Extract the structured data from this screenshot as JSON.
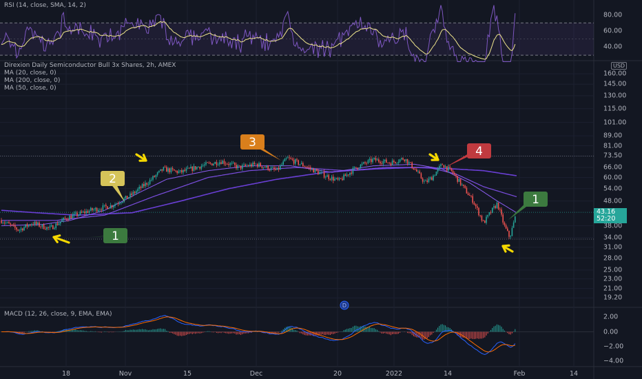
{
  "rsi_legend": "RSI (14, close, SMA, 14, 2)",
  "main_legend": {
    "title": "Direxion Daily Semiconductor Bull 3x Shares, 2h, AMEX",
    "ma20": "MA (20, close, 0)",
    "ma200": "MA (200, close, 0)",
    "ma50": "MA (50, close, 0)"
  },
  "macd_legend": "MACD (12, 26, close, 9, EMA, EMA)",
  "currency": "USD",
  "price_badge": {
    "price": "43.16",
    "countdown": "52:20"
  },
  "event_marker": "D",
  "colors": {
    "background": "#131722",
    "up": "#26a69a",
    "down": "#ef5350",
    "rsi_line": "#7e57c2",
    "rsi_ma": "#f0e68c",
    "ma_line": "#6a3fd6",
    "macd_line": "#2962ff",
    "signal_line": "#ff6d00"
  },
  "annotations": [
    {
      "text": "1",
      "color": "#3c7a3f"
    },
    {
      "text": "2",
      "color": "#d6c45a"
    },
    {
      "text": "3",
      "color": "#d97f1c"
    },
    {
      "text": "4",
      "color": "#c03a3f"
    },
    {
      "text": "1",
      "color": "#3c7a3f"
    }
  ],
  "chart_data": [
    {
      "type": "line",
      "name": "RSI",
      "y_ticks": [
        "80.00",
        "60.00",
        "40.00"
      ],
      "ylim": [
        25,
        95
      ],
      "bands": [
        30,
        70
      ]
    },
    {
      "type": "candlestick",
      "name": "Price",
      "y_ticks": [
        "160.00",
        "145.00",
        "130.00",
        "115.00",
        "101.00",
        "89.00",
        "81.00",
        "73.50",
        "66.00",
        "60.00",
        "54.00",
        "48.00",
        "43.16",
        "38.00",
        "34.00",
        "31.00",
        "28.00",
        "25.00",
        "23.00",
        "21.00",
        "19.20"
      ],
      "scale": "log",
      "ylim": [
        17.8,
        172
      ],
      "x_ticks": [
        "18",
        "Nov",
        "15",
        "Dec",
        "20",
        "2022",
        "14",
        "Feb",
        "14"
      ],
      "last_price": 43.16,
      "anchors": [
        {
          "t": 0,
          "p": 40
        },
        {
          "t": 25,
          "p": 36.5
        },
        {
          "t": 45,
          "p": 39
        },
        {
          "t": 70,
          "p": 37
        },
        {
          "t": 95,
          "p": 41
        },
        {
          "t": 130,
          "p": 44
        },
        {
          "t": 160,
          "p": 46
        },
        {
          "t": 185,
          "p": 50
        },
        {
          "t": 215,
          "p": 58
        },
        {
          "t": 235,
          "p": 65
        },
        {
          "t": 260,
          "p": 63
        },
        {
          "t": 290,
          "p": 67
        },
        {
          "t": 320,
          "p": 70
        },
        {
          "t": 345,
          "p": 66
        },
        {
          "t": 370,
          "p": 68
        },
        {
          "t": 400,
          "p": 64
        },
        {
          "t": 415,
          "p": 72
        },
        {
          "t": 440,
          "p": 67
        },
        {
          "t": 465,
          "p": 62
        },
        {
          "t": 490,
          "p": 58
        },
        {
          "t": 515,
          "p": 66
        },
        {
          "t": 540,
          "p": 71
        },
        {
          "t": 565,
          "p": 69
        },
        {
          "t": 585,
          "p": 72
        },
        {
          "t": 600,
          "p": 65
        },
        {
          "t": 615,
          "p": 57
        },
        {
          "t": 625,
          "p": 60
        },
        {
          "t": 640,
          "p": 68
        },
        {
          "t": 655,
          "p": 63
        },
        {
          "t": 670,
          "p": 55
        },
        {
          "t": 685,
          "p": 48
        },
        {
          "t": 700,
          "p": 39
        },
        {
          "t": 710,
          "p": 43
        },
        {
          "t": 720,
          "p": 47
        },
        {
          "t": 730,
          "p": 38
        },
        {
          "t": 738,
          "p": 34
        },
        {
          "t": 748,
          "p": 43.2
        }
      ],
      "ma20_anchors": [
        {
          "t": 0,
          "p": 38
        },
        {
          "t": 60,
          "p": 38.5
        },
        {
          "t": 100,
          "p": 40
        },
        {
          "t": 150,
          "p": 44
        },
        {
          "t": 200,
          "p": 52
        },
        {
          "t": 240,
          "p": 59
        },
        {
          "t": 300,
          "p": 64
        },
        {
          "t": 360,
          "p": 67
        },
        {
          "t": 420,
          "p": 67
        },
        {
          "t": 480,
          "p": 63
        },
        {
          "t": 540,
          "p": 67
        },
        {
          "t": 600,
          "p": 68
        },
        {
          "t": 640,
          "p": 65
        },
        {
          "t": 680,
          "p": 57
        },
        {
          "t": 720,
          "p": 48
        },
        {
          "t": 748,
          "p": 43
        }
      ],
      "ma50_anchors": [
        {
          "t": 0,
          "p": 40
        },
        {
          "t": 80,
          "p": 40
        },
        {
          "t": 150,
          "p": 42
        },
        {
          "t": 220,
          "p": 50
        },
        {
          "t": 300,
          "p": 60
        },
        {
          "t": 360,
          "p": 64
        },
        {
          "t": 430,
          "p": 66
        },
        {
          "t": 500,
          "p": 64
        },
        {
          "t": 560,
          "p": 66
        },
        {
          "t": 620,
          "p": 66
        },
        {
          "t": 660,
          "p": 62
        },
        {
          "t": 700,
          "p": 55
        },
        {
          "t": 748,
          "p": 50
        }
      ],
      "ma200_anchors": [
        {
          "t": 0,
          "p": 44
        },
        {
          "t": 50,
          "p": 43
        },
        {
          "t": 110,
          "p": 42
        },
        {
          "t": 190,
          "p": 43
        },
        {
          "t": 260,
          "p": 48
        },
        {
          "t": 330,
          "p": 54
        },
        {
          "t": 400,
          "p": 59
        },
        {
          "t": 470,
          "p": 63
        },
        {
          "t": 540,
          "p": 65
        },
        {
          "t": 600,
          "p": 66
        },
        {
          "t": 660,
          "p": 65
        },
        {
          "t": 700,
          "p": 64
        },
        {
          "t": 748,
          "p": 61
        }
      ]
    },
    {
      "type": "histogram",
      "name": "MACD",
      "y_ticks": [
        "2.00",
        "0.00",
        "−2.00",
        "−4.00"
      ],
      "ylim": [
        -4.6,
        2.8
      ]
    }
  ]
}
